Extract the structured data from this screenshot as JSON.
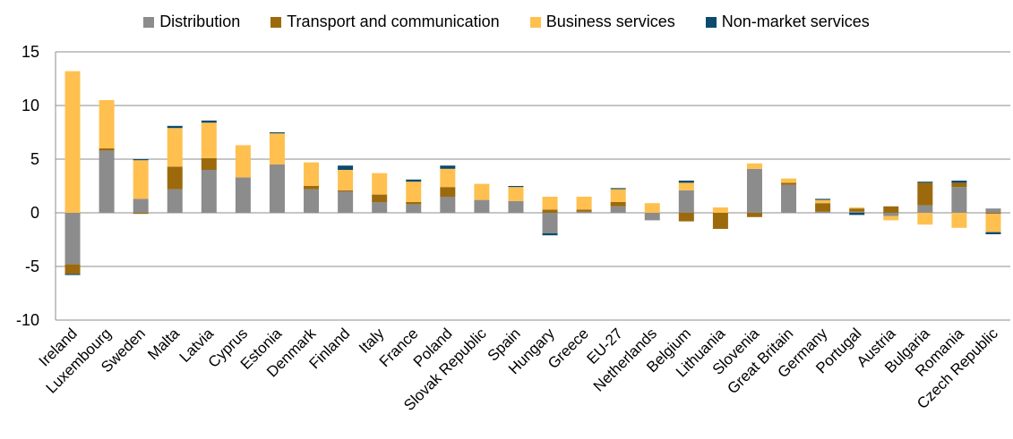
{
  "chart_data": {
    "type": "bar",
    "stacked": true,
    "title": "",
    "xlabel": "",
    "ylabel": "",
    "ylim": [
      -10,
      15
    ],
    "yticks": [
      -10,
      -5,
      0,
      5,
      10,
      15
    ],
    "grid": true,
    "legend_position": "top",
    "colors": {
      "distribution": "#8c8c8c",
      "transport": "#9c6a0c",
      "business": "#ffc04f",
      "nonmarket": "#0c4a6e"
    },
    "categories": [
      "Ireland",
      "Luxembourg",
      "Sweden",
      "Malta",
      "Latvia",
      "Cyprus",
      "Estonia",
      "Denmark",
      "Finland",
      "Italy",
      "France",
      "Poland",
      "Slovak Republic",
      "Spain",
      "Hungary",
      "Greece",
      "EU-27",
      "Netherlands",
      "Belgium",
      "Lithuania",
      "Slovenia",
      "Great Britain",
      "Germany",
      "Portugal",
      "Austria",
      "Bulgaria",
      "Romania",
      "Czech Republic"
    ],
    "series": [
      {
        "name": "Distribution",
        "key": "distribution",
        "values": [
          -4.8,
          5.8,
          1.3,
          2.2,
          4.0,
          3.3,
          4.5,
          2.2,
          2.0,
          1.0,
          0.8,
          1.5,
          1.2,
          1.1,
          -1.9,
          0.1,
          0.6,
          -0.7,
          2.1,
          0.0,
          4.1,
          2.6,
          0.1,
          0.1,
          -0.3,
          0.7,
          2.4,
          0.4
        ]
      },
      {
        "name": "Transport and communication",
        "key": "transport",
        "values": [
          -0.9,
          0.2,
          -0.1,
          2.1,
          1.1,
          0.0,
          0.0,
          0.3,
          0.1,
          0.7,
          0.2,
          0.9,
          0.0,
          0.0,
          0.3,
          0.2,
          0.4,
          0.0,
          -0.8,
          -1.5,
          -0.4,
          0.2,
          0.8,
          0.3,
          0.6,
          2.1,
          0.4,
          -0.1
        ]
      },
      {
        "name": "Business services",
        "key": "business",
        "values": [
          13.2,
          4.5,
          3.6,
          3.6,
          3.3,
          3.0,
          2.9,
          2.2,
          1.9,
          2.0,
          1.9,
          1.7,
          1.5,
          1.3,
          1.2,
          1.2,
          1.2,
          0.9,
          0.7,
          0.5,
          0.5,
          0.4,
          0.3,
          0.1,
          -0.4,
          -1.1,
          -1.4,
          -1.7
        ]
      },
      {
        "name": "Non-market services",
        "key": "nonmarket",
        "values": [
          -0.1,
          0.0,
          0.1,
          0.2,
          0.2,
          0.0,
          0.1,
          0.0,
          0.4,
          0.0,
          0.2,
          0.3,
          0.0,
          0.1,
          -0.2,
          0.0,
          0.1,
          0.0,
          0.2,
          0.0,
          0.0,
          0.0,
          0.1,
          -0.2,
          0.0,
          0.1,
          0.2,
          -0.2
        ]
      }
    ]
  }
}
